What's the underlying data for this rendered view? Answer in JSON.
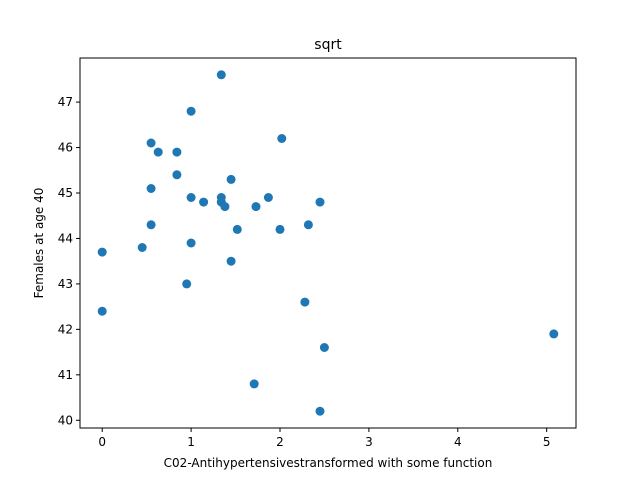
{
  "chart_data": {
    "type": "scatter",
    "title": "sqrt",
    "xlabel": "C02-Antihypertensivestransformed with some function",
    "ylabel": "Females at age 40",
    "xlim": [
      -0.25,
      5.33
    ],
    "ylim": [
      39.83,
      47.97
    ],
    "grid": false,
    "marker_color": "#1f77b4",
    "x_ticks": [
      {
        "value": 0,
        "label": "0"
      },
      {
        "value": 1,
        "label": "1"
      },
      {
        "value": 2,
        "label": "2"
      },
      {
        "value": 3,
        "label": "3"
      },
      {
        "value": 4,
        "label": "4"
      },
      {
        "value": 5,
        "label": "5"
      }
    ],
    "y_ticks": [
      {
        "value": 40,
        "label": "40"
      },
      {
        "value": 41,
        "label": "41"
      },
      {
        "value": 42,
        "label": "42"
      },
      {
        "value": 43,
        "label": "43"
      },
      {
        "value": 44,
        "label": "44"
      },
      {
        "value": 45,
        "label": "45"
      },
      {
        "value": 46,
        "label": "46"
      },
      {
        "value": 47,
        "label": "47"
      }
    ],
    "points": [
      {
        "x": 0.0,
        "y": 43.7
      },
      {
        "x": 0.0,
        "y": 42.4
      },
      {
        "x": 0.45,
        "y": 43.8
      },
      {
        "x": 0.55,
        "y": 46.1
      },
      {
        "x": 0.55,
        "y": 45.1
      },
      {
        "x": 0.55,
        "y": 44.3
      },
      {
        "x": 0.63,
        "y": 45.9
      },
      {
        "x": 0.84,
        "y": 45.9
      },
      {
        "x": 0.84,
        "y": 45.4
      },
      {
        "x": 0.95,
        "y": 43.0
      },
      {
        "x": 1.0,
        "y": 46.8
      },
      {
        "x": 1.0,
        "y": 44.9
      },
      {
        "x": 1.0,
        "y": 43.9
      },
      {
        "x": 1.14,
        "y": 44.8
      },
      {
        "x": 1.34,
        "y": 47.6
      },
      {
        "x": 1.34,
        "y": 44.9
      },
      {
        "x": 1.34,
        "y": 44.8
      },
      {
        "x": 1.38,
        "y": 44.7
      },
      {
        "x": 1.45,
        "y": 45.3
      },
      {
        "x": 1.45,
        "y": 43.5
      },
      {
        "x": 1.52,
        "y": 44.2
      },
      {
        "x": 1.71,
        "y": 40.8
      },
      {
        "x": 1.73,
        "y": 44.7
      },
      {
        "x": 1.87,
        "y": 44.9
      },
      {
        "x": 2.0,
        "y": 44.2
      },
      {
        "x": 2.02,
        "y": 46.2
      },
      {
        "x": 2.28,
        "y": 42.6
      },
      {
        "x": 2.32,
        "y": 44.3
      },
      {
        "x": 2.45,
        "y": 44.8
      },
      {
        "x": 2.45,
        "y": 40.2
      },
      {
        "x": 2.5,
        "y": 41.6
      },
      {
        "x": 5.08,
        "y": 41.9
      }
    ]
  }
}
